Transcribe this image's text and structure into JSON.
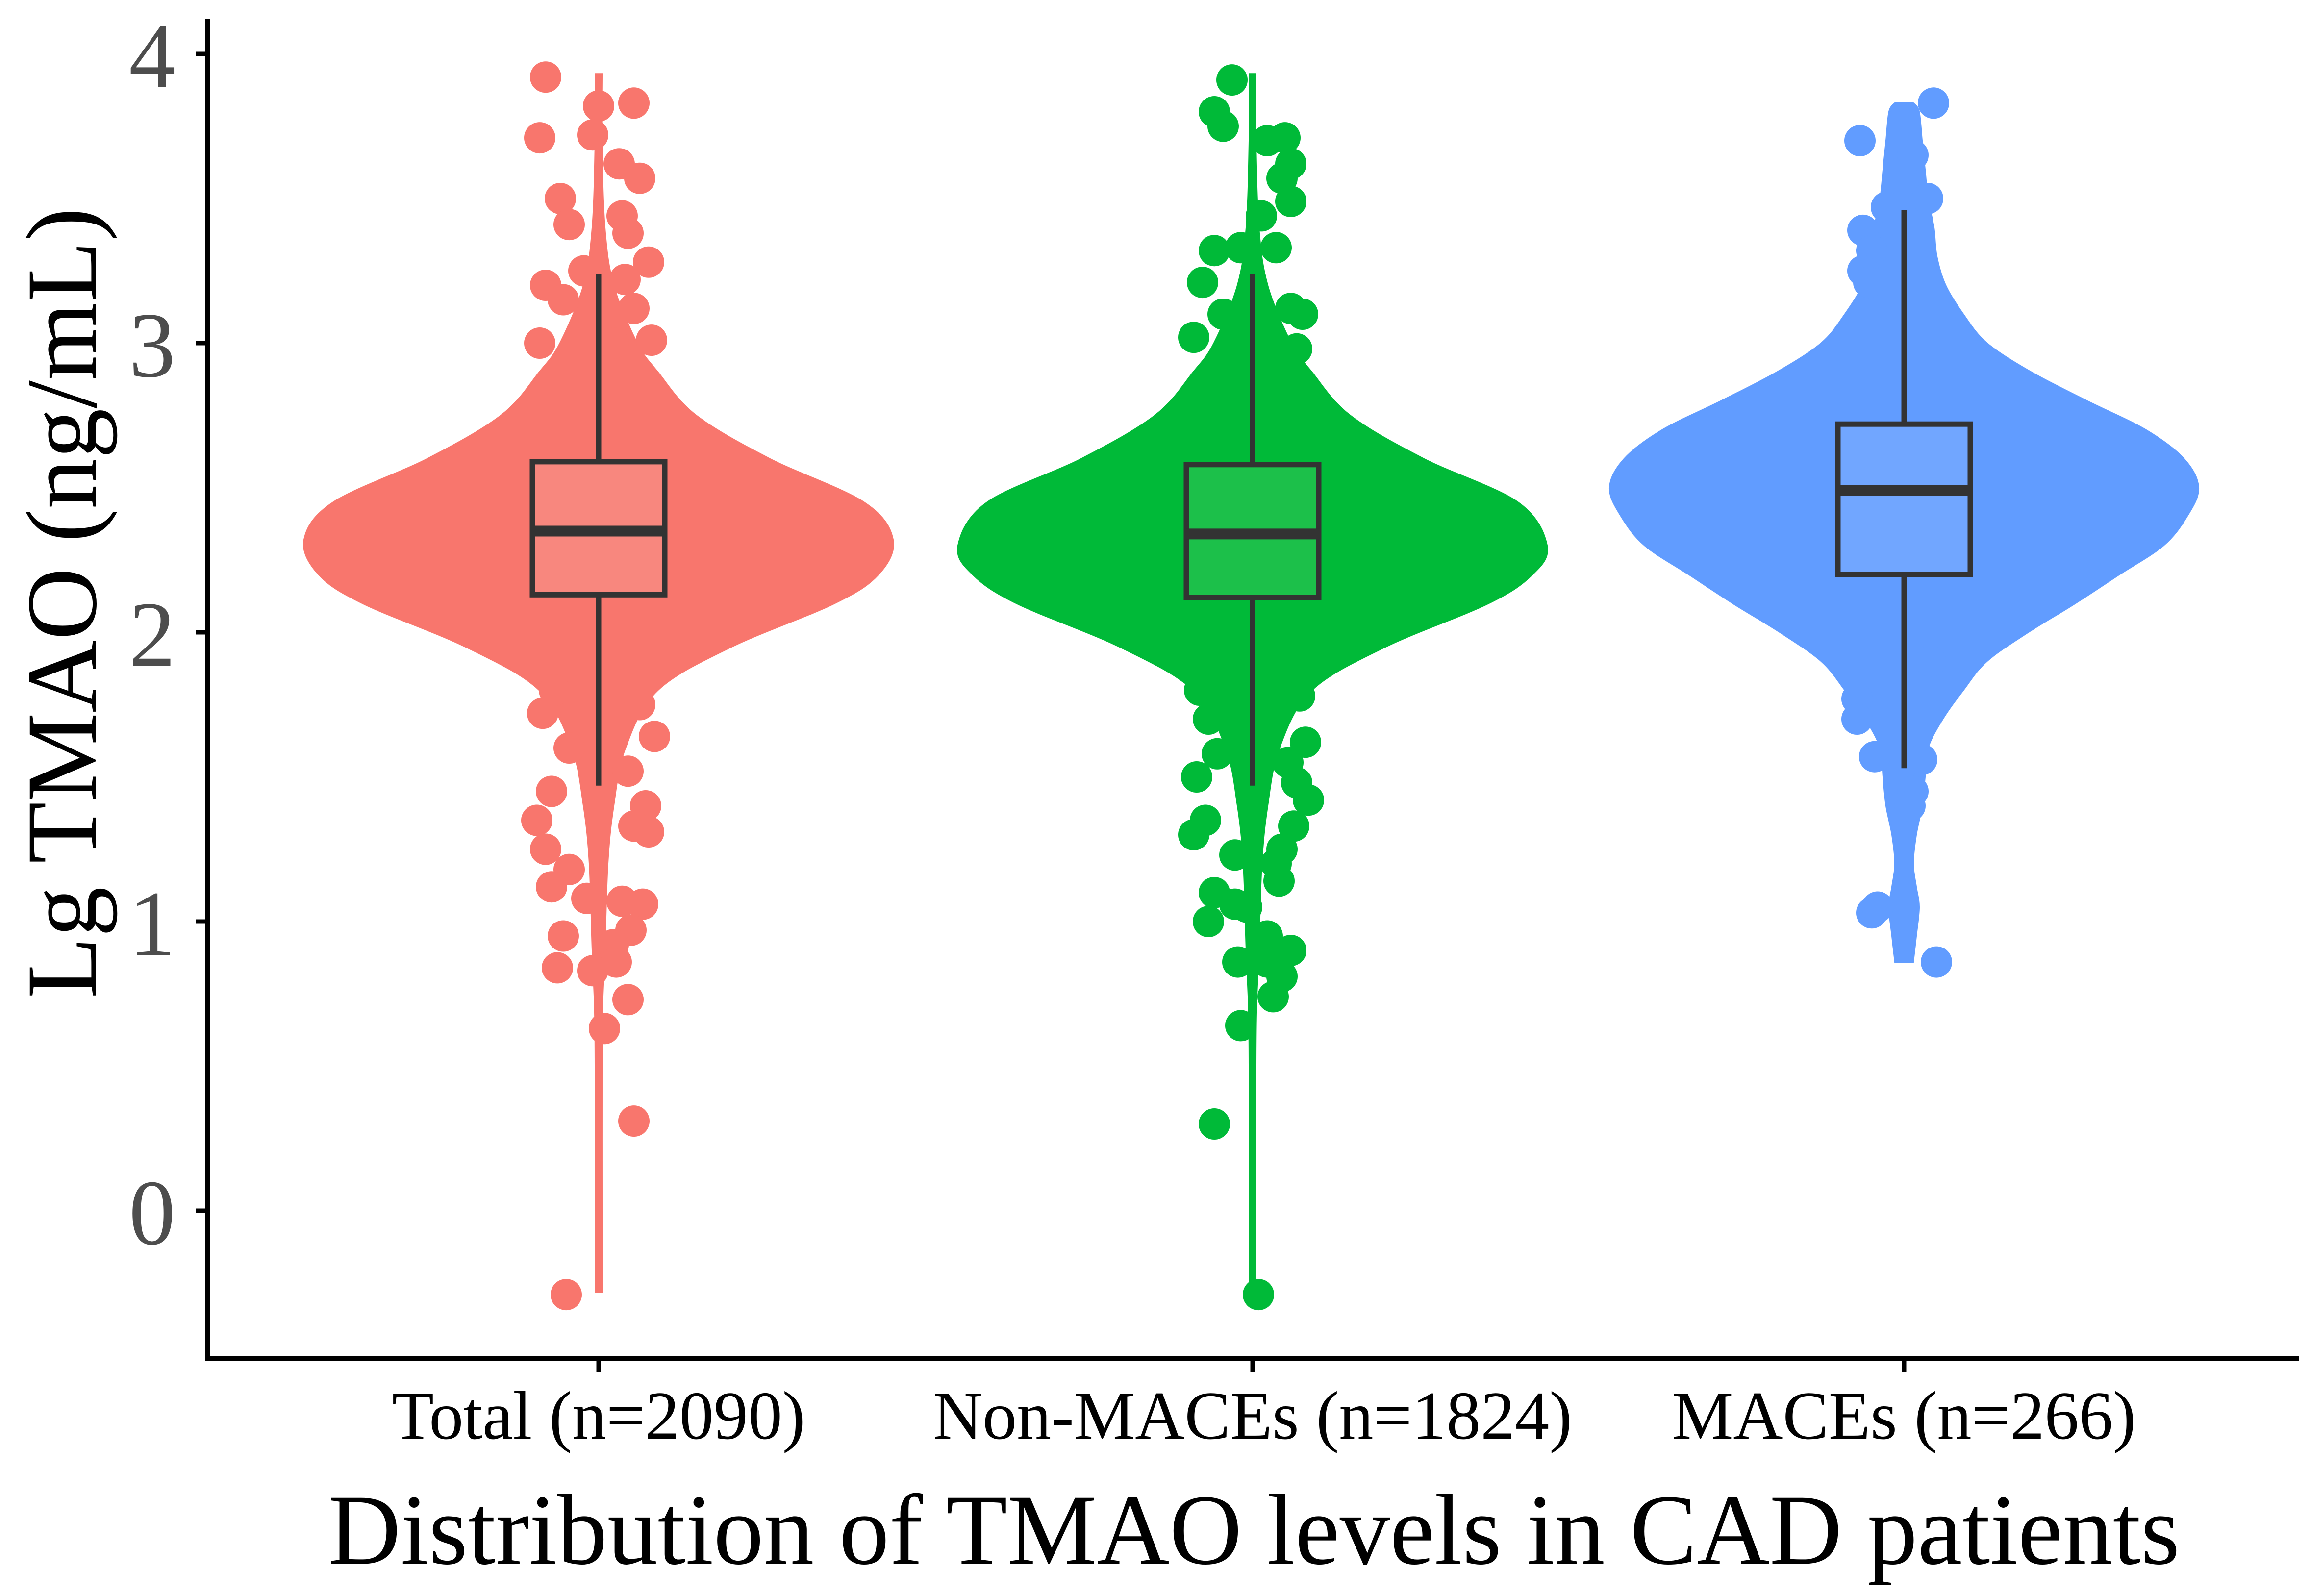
{
  "chart_data": {
    "type": "violin-box-jitter",
    "title": "",
    "xlabel": "Distribution of TMAO levels in CAD patients",
    "ylabel": "Lg TMAO (ng/mL)",
    "ylim": [
      -0.5,
      4.1
    ],
    "yticks": [
      0,
      1,
      2,
      3,
      4
    ],
    "yticklabels": [
      "0",
      "1",
      "2",
      "3",
      "4"
    ],
    "groups": [
      {
        "name": "Total (n=2090)",
        "color": "#F8766D",
        "box_fill": "#F8877E",
        "box": {
          "q1": 2.13,
          "median": 2.35,
          "q3": 2.59,
          "whisker_low": 1.47,
          "whisker_high": 3.24
        },
        "violin": [
          [
            -0.28,
            0.004
          ],
          [
            0.0,
            0.004
          ],
          [
            0.5,
            0.005
          ],
          [
            0.7,
            0.012
          ],
          [
            0.9,
            0.02
          ],
          [
            1.2,
            0.03
          ],
          [
            1.4,
            0.05
          ],
          [
            1.6,
            0.09
          ],
          [
            1.8,
            0.2
          ],
          [
            1.95,
            0.45
          ],
          [
            2.1,
            0.8
          ],
          [
            2.2,
            0.95
          ],
          [
            2.32,
            1.0
          ],
          [
            2.45,
            0.9
          ],
          [
            2.6,
            0.58
          ],
          [
            2.75,
            0.33
          ],
          [
            2.9,
            0.2
          ],
          [
            3.0,
            0.13
          ],
          [
            3.2,
            0.05
          ],
          [
            3.4,
            0.02
          ],
          [
            3.7,
            0.01
          ],
          [
            3.93,
            0.004
          ]
        ],
        "points": [
          [
            -0.18,
            3.92
          ],
          [
            0.12,
            3.83
          ],
          [
            -0.2,
            3.71
          ],
          [
            0.0,
            3.82
          ],
          [
            -0.02,
            3.72
          ],
          [
            0.07,
            3.62
          ],
          [
            0.14,
            3.57
          ],
          [
            -0.13,
            3.5
          ],
          [
            0.08,
            3.44
          ],
          [
            -0.1,
            3.41
          ],
          [
            0.1,
            3.38
          ],
          [
            0.17,
            3.28
          ],
          [
            -0.18,
            3.2
          ],
          [
            -0.12,
            3.15
          ],
          [
            0.12,
            3.12
          ],
          [
            -0.05,
            3.25
          ],
          [
            0.05,
            3.0
          ],
          [
            -0.2,
            3.0
          ],
          [
            0.18,
            3.01
          ],
          [
            0.09,
            3.22
          ],
          [
            -0.15,
            1.8
          ],
          [
            0.14,
            1.75
          ],
          [
            -0.19,
            1.72
          ],
          [
            0.19,
            1.64
          ],
          [
            -0.1,
            1.6
          ],
          [
            0.1,
            1.52
          ],
          [
            -0.16,
            1.45
          ],
          [
            0.16,
            1.4
          ],
          [
            -0.21,
            1.35
          ],
          [
            0.12,
            1.33
          ],
          [
            -0.18,
            1.25
          ],
          [
            0.17,
            1.31
          ],
          [
            -0.1,
            1.18
          ],
          [
            -0.16,
            1.12
          ],
          [
            0.08,
            1.07
          ],
          [
            -0.04,
            1.08
          ],
          [
            0.15,
            1.06
          ],
          [
            0.11,
            0.97
          ],
          [
            -0.12,
            0.95
          ],
          [
            0.05,
            0.92
          ],
          [
            -0.14,
            0.84
          ],
          [
            0.06,
            0.86
          ],
          [
            -0.02,
            0.83
          ],
          [
            0.1,
            0.73
          ],
          [
            0.02,
            0.63
          ],
          [
            0.12,
            0.31
          ],
          [
            -0.11,
            -0.29
          ]
        ]
      },
      {
        "name": "Non-MACEs (n=1824)",
        "color": "#00BA38",
        "box_fill": "#1CC04A",
        "box": {
          "q1": 2.12,
          "median": 2.34,
          "q3": 2.58,
          "whisker_low": 1.47,
          "whisker_high": 3.24
        },
        "violin": [
          [
            -0.28,
            0.004
          ],
          [
            0.0,
            0.004
          ],
          [
            0.5,
            0.005
          ],
          [
            0.7,
            0.012
          ],
          [
            0.9,
            0.02
          ],
          [
            1.2,
            0.03
          ],
          [
            1.4,
            0.05
          ],
          [
            1.6,
            0.09
          ],
          [
            1.8,
            0.2
          ],
          [
            1.95,
            0.45
          ],
          [
            2.1,
            0.8
          ],
          [
            2.2,
            0.95
          ],
          [
            2.3,
            1.0
          ],
          [
            2.45,
            0.9
          ],
          [
            2.6,
            0.58
          ],
          [
            2.75,
            0.33
          ],
          [
            2.9,
            0.2
          ],
          [
            3.0,
            0.13
          ],
          [
            3.2,
            0.05
          ],
          [
            3.4,
            0.02
          ],
          [
            3.7,
            0.01
          ],
          [
            3.93,
            0.004
          ]
        ],
        "points": [
          [
            -0.13,
            3.8
          ],
          [
            -0.1,
            3.75
          ],
          [
            -0.07,
            3.91
          ],
          [
            0.05,
            3.7
          ],
          [
            0.11,
            3.71
          ],
          [
            0.13,
            3.62
          ],
          [
            0.1,
            3.57
          ],
          [
            0.13,
            3.49
          ],
          [
            -0.04,
            3.33
          ],
          [
            0.08,
            3.33
          ],
          [
            -0.13,
            3.32
          ],
          [
            0.03,
            3.44
          ],
          [
            -0.17,
            3.21
          ],
          [
            0.13,
            3.12
          ],
          [
            0.17,
            3.1
          ],
          [
            -0.2,
            3.02
          ],
          [
            0.15,
            2.98
          ],
          [
            -0.1,
            3.1
          ],
          [
            -0.18,
            1.8
          ],
          [
            0.16,
            1.78
          ],
          [
            -0.15,
            1.7
          ],
          [
            0.18,
            1.62
          ],
          [
            -0.12,
            1.58
          ],
          [
            0.12,
            1.55
          ],
          [
            -0.19,
            1.5
          ],
          [
            0.15,
            1.48
          ],
          [
            0.19,
            1.42
          ],
          [
            -0.16,
            1.35
          ],
          [
            0.14,
            1.33
          ],
          [
            -0.2,
            1.3
          ],
          [
            0.1,
            1.25
          ],
          [
            -0.06,
            1.23
          ],
          [
            0.08,
            1.2
          ],
          [
            0.09,
            1.14
          ],
          [
            -0.13,
            1.1
          ],
          [
            -0.06,
            1.06
          ],
          [
            -0.02,
            1.05
          ],
          [
            -0.15,
            1.0
          ],
          [
            0.05,
            0.95
          ],
          [
            0.13,
            0.9
          ],
          [
            0.05,
            0.86
          ],
          [
            -0.05,
            0.86
          ],
          [
            0.1,
            0.81
          ],
          [
            0.07,
            0.74
          ],
          [
            -0.04,
            0.64
          ],
          [
            -0.13,
            0.3
          ],
          [
            0.02,
            -0.29
          ]
        ]
      },
      {
        "name": "MACEs (n=266)",
        "color": "#619CFF",
        "box_fill": "#71A6FF",
        "box": {
          "q1": 2.2,
          "median": 2.49,
          "q3": 2.72,
          "whisker_low": 1.53,
          "whisker_high": 3.46
        },
        "violin": [
          [
            0.86,
            0.03
          ],
          [
            0.95,
            0.04
          ],
          [
            1.05,
            0.05
          ],
          [
            1.12,
            0.04
          ],
          [
            1.2,
            0.03
          ],
          [
            1.3,
            0.04
          ],
          [
            1.4,
            0.06
          ],
          [
            1.5,
            0.07
          ],
          [
            1.6,
            0.08
          ],
          [
            1.7,
            0.13
          ],
          [
            1.8,
            0.2
          ],
          [
            1.9,
            0.28
          ],
          [
            2.0,
            0.42
          ],
          [
            2.1,
            0.58
          ],
          [
            2.2,
            0.73
          ],
          [
            2.3,
            0.88
          ],
          [
            2.4,
            0.96
          ],
          [
            2.5,
            1.0
          ],
          [
            2.6,
            0.95
          ],
          [
            2.7,
            0.82
          ],
          [
            2.8,
            0.62
          ],
          [
            2.9,
            0.43
          ],
          [
            3.0,
            0.28
          ],
          [
            3.1,
            0.2
          ],
          [
            3.2,
            0.14
          ],
          [
            3.3,
            0.11
          ],
          [
            3.4,
            0.1
          ],
          [
            3.5,
            0.08
          ],
          [
            3.6,
            0.07
          ],
          [
            3.7,
            0.06
          ],
          [
            3.8,
            0.05
          ],
          [
            3.83,
            0.03
          ]
        ],
        "points": [
          [
            0.1,
            3.83
          ],
          [
            -0.15,
            3.7
          ],
          [
            0.03,
            3.65
          ],
          [
            0.08,
            3.5
          ],
          [
            -0.06,
            3.47
          ],
          [
            -0.14,
            3.39
          ],
          [
            -0.11,
            3.32
          ],
          [
            -0.14,
            3.25
          ],
          [
            -0.12,
            3.21
          ],
          [
            -0.16,
            1.77
          ],
          [
            -0.16,
            1.7
          ],
          [
            0.09,
            1.9
          ],
          [
            -0.1,
            1.57
          ],
          [
            0.06,
            1.56
          ],
          [
            0.03,
            1.45
          ],
          [
            0.02,
            1.4
          ],
          [
            -0.11,
            1.03
          ],
          [
            -0.09,
            1.05
          ],
          [
            0.11,
            0.86
          ]
        ]
      }
    ]
  }
}
